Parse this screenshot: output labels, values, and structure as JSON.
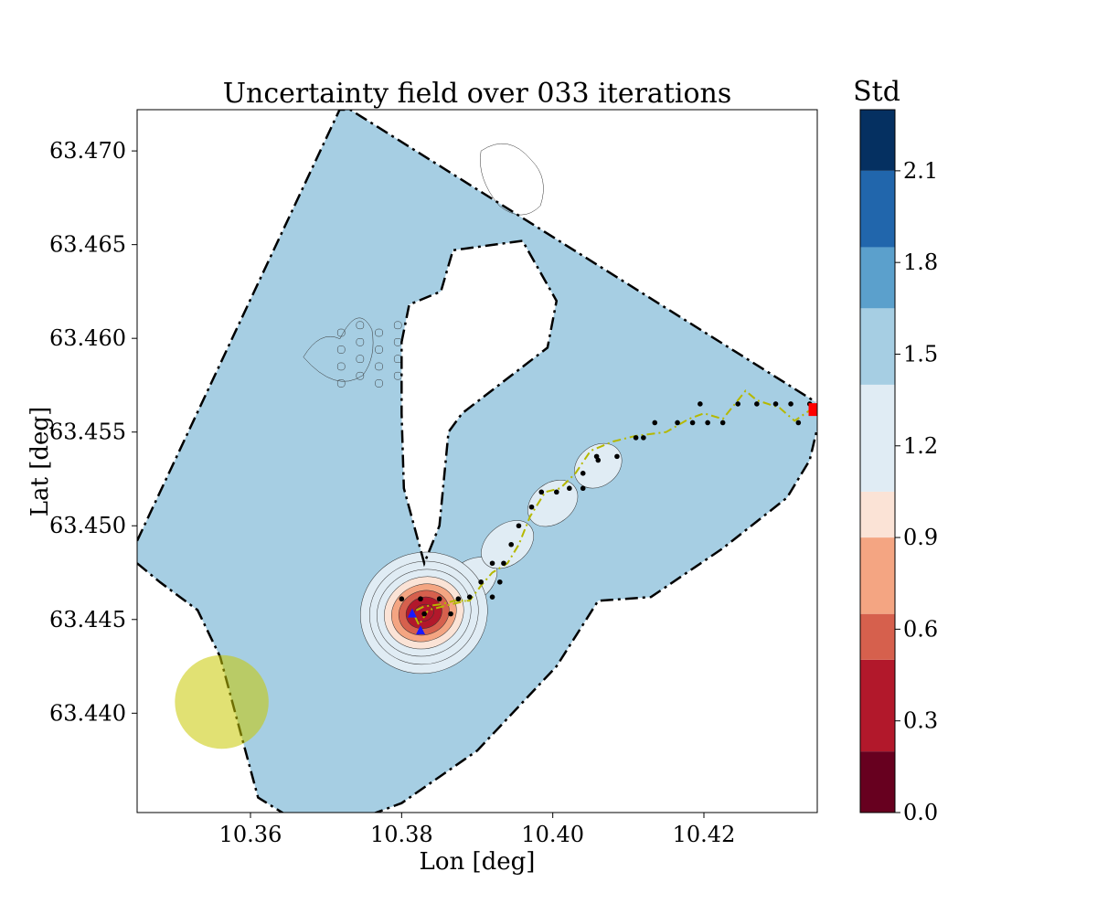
{
  "chart_data": {
    "type": "contour",
    "title": "Uncertainty field over 033 iterations",
    "xlabel": "Lon [deg]",
    "ylabel": "Lat [deg]",
    "xlim": [
      10.345,
      10.435
    ],
    "ylim": [
      63.4347,
      63.4722
    ],
    "xticks": [
      10.36,
      10.38,
      10.4,
      10.42
    ],
    "xtick_labels": [
      "10.36",
      "10.38",
      "10.40",
      "10.42"
    ],
    "yticks": [
      63.44,
      63.445,
      63.45,
      63.455,
      63.46,
      63.465,
      63.47
    ],
    "ytick_labels": [
      "63.440",
      "63.445",
      "63.450",
      "63.455",
      "63.460",
      "63.465",
      "63.470"
    ],
    "grid": false,
    "colorbar": {
      "label": "Std",
      "min": 0.0,
      "max": 2.3,
      "levels": [
        0.0,
        0.2,
        0.5,
        0.65,
        0.9,
        1.05,
        1.4,
        1.65,
        1.85,
        2.1,
        2.3
      ],
      "colors": [
        "#67001f",
        "#b2182b",
        "#d6604d",
        "#f4a582",
        "#fbe3d6",
        "#e0ecf4",
        "#a6cee3",
        "#5ba0cc",
        "#2166ac",
        "#053061"
      ],
      "ticks": [
        0.0,
        0.3,
        0.6,
        0.9,
        1.2,
        1.5,
        1.8,
        2.1
      ],
      "tick_labels": [
        "0.0",
        "0.3",
        "0.6",
        "0.9",
        "1.2",
        "1.5",
        "1.8",
        "2.1"
      ]
    },
    "background_level_std": 1.5,
    "low_std_region_center": [
      10.3818,
      63.4455
    ],
    "operational_boundary": [
      [
        10.345,
        63.4492
      ],
      [
        10.3718,
        63.4722
      ],
      [
        10.3732,
        63.4722
      ],
      [
        10.4348,
        63.4566
      ]
    ],
    "island_boundary": [
      [
        10.38,
        63.4598
      ],
      [
        10.381,
        63.4618
      ],
      [
        10.3852,
        63.4625
      ],
      [
        10.3868,
        63.4647
      ],
      [
        10.396,
        63.4652
      ],
      [
        10.4005,
        63.462
      ],
      [
        10.3993,
        63.4595
      ],
      [
        10.388,
        63.456
      ],
      [
        10.3862,
        63.455
      ],
      [
        10.385,
        63.45
      ],
      [
        10.383,
        63.448
      ],
      [
        10.3803,
        63.452
      ],
      [
        10.38,
        63.456
      ]
    ],
    "shoreline": [
      [
        10.345,
        63.448
      ],
      [
        10.348,
        63.447
      ],
      [
        10.353,
        63.4455
      ],
      [
        10.356,
        63.443
      ],
      [
        10.359,
        63.4385
      ],
      [
        10.361,
        63.4355
      ],
      [
        10.365,
        63.4345
      ],
      [
        10.372,
        63.434
      ],
      [
        10.38,
        63.4352
      ],
      [
        10.39,
        63.438
      ],
      [
        10.4005,
        63.4425
      ],
      [
        10.406,
        63.446
      ],
      [
        10.413,
        63.4462
      ],
      [
        10.4225,
        63.4488
      ],
      [
        10.431,
        63.4515
      ],
      [
        10.434,
        63.4535
      ],
      [
        10.435,
        63.4552
      ]
    ],
    "path_waypoints": [
      [
        10.38,
        63.4461
      ],
      [
        10.3825,
        63.4461
      ],
      [
        10.385,
        63.4461
      ],
      [
        10.3875,
        63.4461
      ],
      [
        10.383,
        63.4453
      ],
      [
        10.3865,
        63.4453
      ],
      [
        10.389,
        63.4462
      ],
      [
        10.3905,
        63.447
      ],
      [
        10.392,
        63.448
      ],
      [
        10.3935,
        63.448
      ],
      [
        10.393,
        63.447
      ],
      [
        10.392,
        63.4462
      ],
      [
        10.3945,
        63.449
      ],
      [
        10.3955,
        63.45
      ],
      [
        10.3972,
        63.451
      ],
      [
        10.3985,
        63.4518
      ],
      [
        10.4005,
        63.4518
      ],
      [
        10.4022,
        63.452
      ],
      [
        10.404,
        63.4528
      ],
      [
        10.406,
        63.4535
      ],
      [
        10.4085,
        63.4537
      ],
      [
        10.4058,
        63.4537
      ],
      [
        10.404,
        63.452
      ],
      [
        10.411,
        63.4547
      ],
      [
        10.4135,
        63.4555
      ],
      [
        10.4165,
        63.4555
      ],
      [
        10.4185,
        63.4555
      ],
      [
        10.4195,
        63.4565
      ],
      [
        10.4205,
        63.4555
      ],
      [
        10.4225,
        63.4555
      ],
      [
        10.4245,
        63.4565
      ],
      [
        10.427,
        63.4565
      ],
      [
        10.4295,
        63.4565
      ],
      [
        10.4315,
        63.4565
      ],
      [
        10.4325,
        63.4555
      ],
      [
        10.434,
        63.4565
      ],
      [
        10.412,
        63.4547
      ]
    ],
    "trajectory": [
      [
        10.4345,
        63.4563
      ],
      [
        10.432,
        63.4556
      ],
      [
        10.43,
        63.4563
      ],
      [
        10.427,
        63.4567
      ],
      [
        10.4255,
        63.4572
      ],
      [
        10.4225,
        63.4557
      ],
      [
        10.42,
        63.456
      ],
      [
        10.418,
        63.4557
      ],
      [
        10.415,
        63.455
      ],
      [
        10.411,
        63.4548
      ],
      [
        10.408,
        63.4545
      ],
      [
        10.405,
        63.454
      ],
      [
        10.403,
        63.4528
      ],
      [
        10.401,
        63.452
      ],
      [
        10.399,
        63.4518
      ],
      [
        10.397,
        63.4505
      ],
      [
        10.3955,
        63.449
      ],
      [
        10.394,
        63.448
      ],
      [
        10.392,
        63.4475
      ],
      [
        10.3905,
        63.4468
      ],
      [
        10.389,
        63.446
      ],
      [
        10.387,
        63.446
      ],
      [
        10.385,
        63.4458
      ],
      [
        10.383,
        63.4457
      ],
      [
        10.3815,
        63.4454
      ],
      [
        10.3823,
        63.4447
      ],
      [
        10.3835,
        63.4455
      ],
      [
        10.3865,
        63.4458
      ],
      [
        10.3885,
        63.446
      ]
    ],
    "current_location": [
      10.4347,
      63.4562
    ],
    "start_markers": [
      [
        10.3814,
        63.4453
      ],
      [
        10.3825,
        63.4444
      ]
    ],
    "obstacle_circle": {
      "center": [
        10.3562,
        63.4406
      ],
      "radius_deg_lon": 0.0062
    }
  }
}
